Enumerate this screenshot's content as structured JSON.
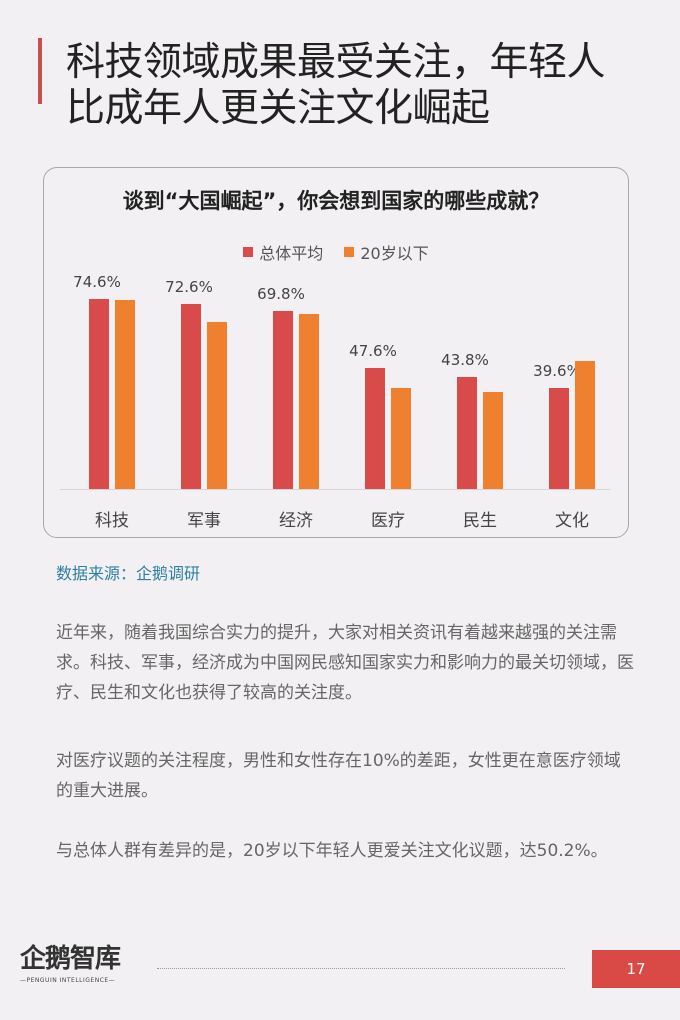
{
  "header": {
    "title_lines": [
      "科技领域成果最受关注，年轻人",
      "比成年人更关注文化崛起"
    ],
    "accent_color": "#c8504f"
  },
  "chart": {
    "title": "谈到“大国崛起”，你会想到国家的哪些成就？",
    "legend": [
      {
        "label": "总体平均",
        "color": "#d94a4b"
      },
      {
        "label": "20岁以下",
        "color": "#ee8030"
      }
    ]
  },
  "chart_data": {
    "type": "bar",
    "title": "谈到“大国崛起”，你会想到国家的哪些成就？",
    "categories": [
      "科技",
      "军事",
      "经济",
      "医疗",
      "民生",
      "文化"
    ],
    "series": [
      {
        "name": "总体平均",
        "color": "#d94a4b",
        "values": [
          74.6,
          72.6,
          69.8,
          47.6,
          43.8,
          39.6
        ],
        "labels": [
          "74.6%",
          "72.6%",
          "69.8%",
          "47.6%",
          "43.8%",
          "39.6%"
        ]
      },
      {
        "name": "20岁以下",
        "color": "#ee8030",
        "values": [
          74.2,
          65.6,
          68.7,
          39.7,
          38.1,
          50.2
        ]
      }
    ],
    "xlabel": "",
    "ylabel": "",
    "ylim": [
      0,
      80
    ],
    "grid": false,
    "legend_position": "top"
  },
  "source": "数据来源：企鹅调研",
  "paragraphs": [
    "近年来，随着我国综合实力的提升，大家对相关资讯有着越来越强的关注需求。科技、军事，经济成为中国网民感知国家实力和影响力的最关切领域，医疗、民生和文化也获得了较高的关注度。",
    "对医疗议题的关注程度，男性和女性存在10%的差距，女性更在意医疗领域的重大进展。",
    "与总体人群有差异的是，20岁以下年轻人更爱关注文化议题，达50.2%。"
  ],
  "footer": {
    "logo_main": "企鹅智库",
    "logo_sub": "—PENGUIN INTELLIGENCE—",
    "page_number": "17",
    "page_badge_color": "#d94a47"
  }
}
